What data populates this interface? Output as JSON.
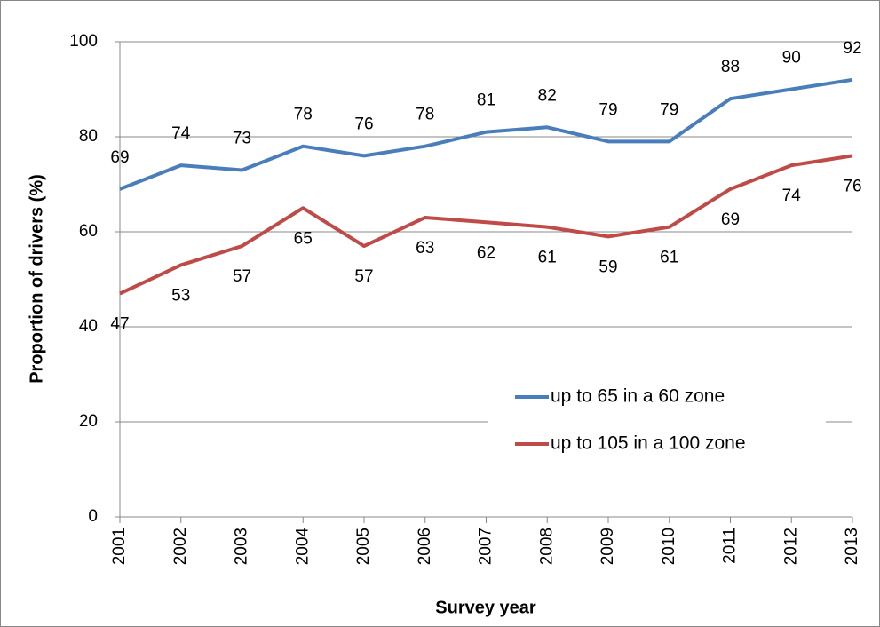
{
  "chart_data": {
    "type": "line",
    "x_label": "Survey year",
    "y_label": "Proportion of drivers (%)",
    "x": [
      2001,
      2002,
      2003,
      2004,
      2005,
      2006,
      2007,
      2008,
      2009,
      2010,
      2011,
      2012,
      2013
    ],
    "xlim": [
      2001,
      2013
    ],
    "xticks": [
      2001,
      2002,
      2003,
      2004,
      2005,
      2006,
      2007,
      2008,
      2009,
      2010,
      2011,
      2012,
      2013
    ],
    "ylim": [
      0,
      100
    ],
    "yticks": [
      0,
      20,
      40,
      60,
      80,
      100
    ],
    "grid": true,
    "legend": "lower right",
    "series": [
      {
        "name": "up to 65 in a 60 zone",
        "color": "#4a7ebb",
        "label_side": "above",
        "values": [
          69,
          74,
          73,
          78,
          76,
          78,
          81,
          82,
          79,
          79,
          88,
          90,
          92
        ]
      },
      {
        "name": "up to 105 in a 100 zone",
        "color": "#be4b48",
        "label_side": "below",
        "values": [
          47,
          53,
          57,
          65,
          57,
          63,
          62,
          61,
          59,
          61,
          69,
          74,
          76
        ]
      }
    ]
  }
}
